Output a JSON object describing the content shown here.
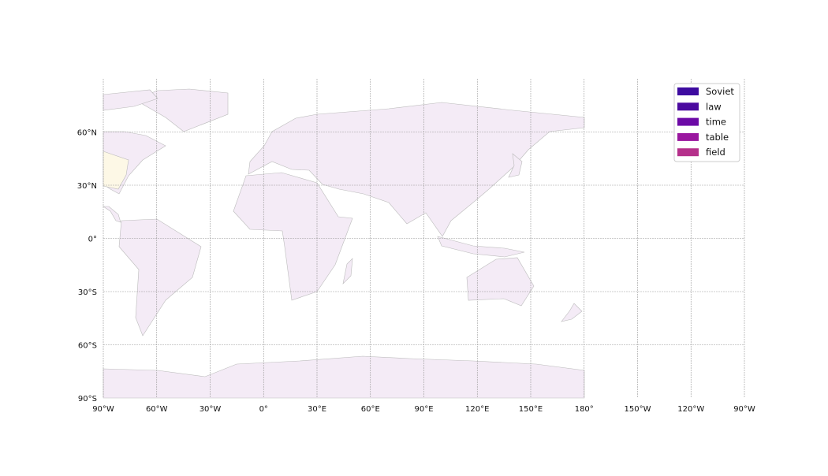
{
  "map": {
    "lon_ticks": [
      "90°W",
      "60°W",
      "30°W",
      "0°",
      "30°E",
      "60°E",
      "90°E",
      "120°E",
      "150°E",
      "180°",
      "150°W",
      "120°W",
      "90°W"
    ],
    "lat_ticks": [
      "90°S",
      "60°S",
      "30°S",
      "0°",
      "30°N",
      "60°N"
    ],
    "legend": [
      {
        "name": "Soviet",
        "color": "#3d0ba0"
      },
      {
        "name": "law",
        "color": "#4b0a9f"
      },
      {
        "name": "time",
        "color": "#6c0aa6"
      },
      {
        "name": "table",
        "color": "#9a179f"
      },
      {
        "name": "field",
        "color": "#b5308b"
      }
    ]
  }
}
